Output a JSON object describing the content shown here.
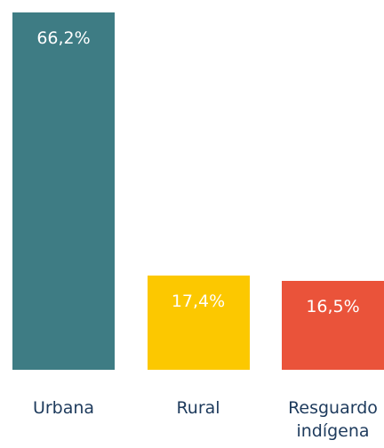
{
  "chart_data": {
    "type": "bar",
    "categories": [
      "Urbana",
      "Rural",
      "Resguardo indígena"
    ],
    "values": [
      66.2,
      17.4,
      16.5
    ],
    "value_labels": [
      "66,2%",
      "17,4%",
      "16,5%"
    ],
    "colors": [
      "#3e7c84",
      "#fcc800",
      "#ea533a"
    ]
  }
}
